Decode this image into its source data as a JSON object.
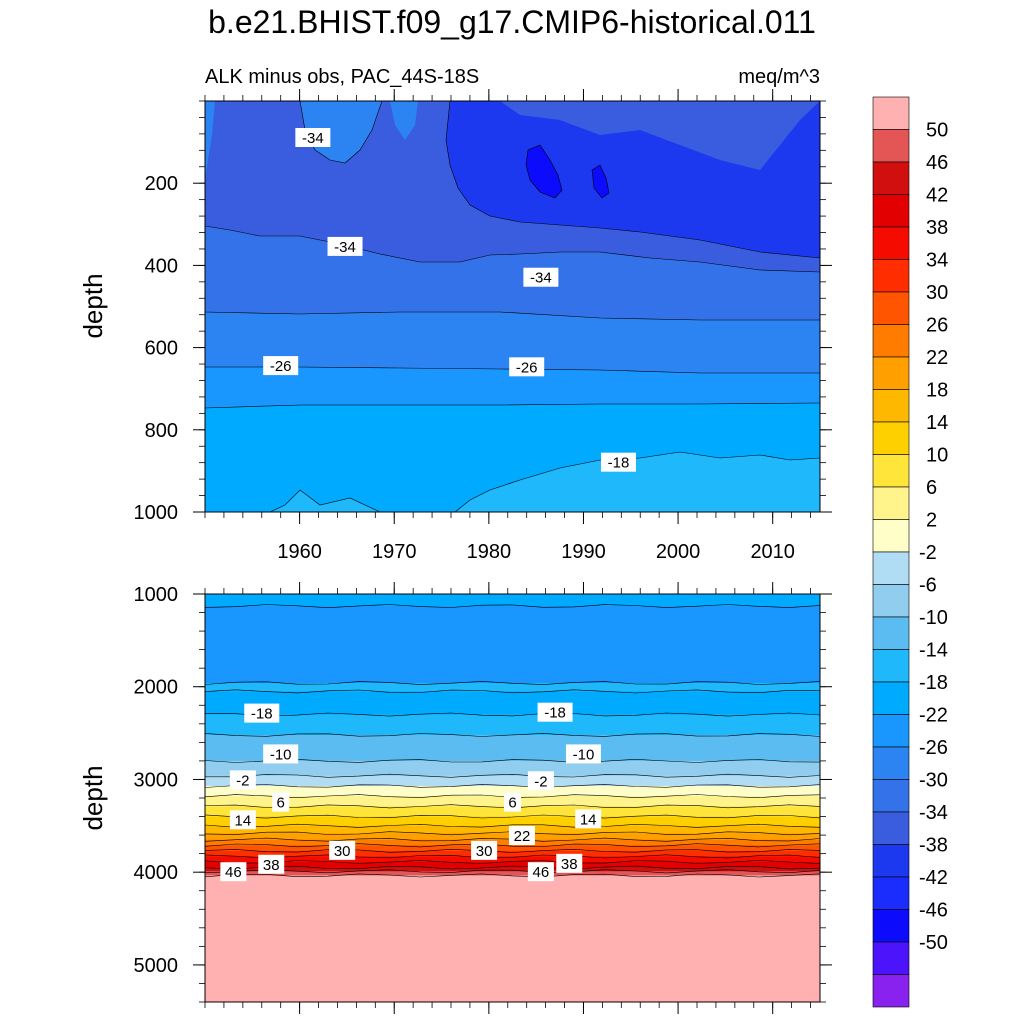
{
  "title": "b.e21.BHIST.f09_g17.CMIP6-historical.011",
  "left_subtitle": "ALK minus obs, PAC_44S-18S",
  "right_subtitle": "meq/m^3",
  "colorbar": {
    "labels": [
      "50",
      "46",
      "42",
      "38",
      "34",
      "30",
      "26",
      "22",
      "18",
      "14",
      "10",
      "6",
      "2",
      "-2",
      "-6",
      "-10",
      "-14",
      "-18",
      "-22",
      "-26",
      "-30",
      "-34",
      "-38",
      "-42",
      "-46",
      "-50"
    ],
    "colors": [
      "#ffb1b1",
      "#e45656",
      "#d20f0f",
      "#e20000",
      "#f60b00",
      "#ff2d00",
      "#ff5500",
      "#ff7c00",
      "#ff9f00",
      "#ffb800",
      "#ffd000",
      "#ffe43a",
      "#fff38c",
      "#fffec9",
      "#b0dcf4",
      "#90cdee",
      "#5bbcf2",
      "#1fb8fb",
      "#00abff",
      "#1a96ff",
      "#2b84f2",
      "#3372e8",
      "#3a5de0",
      "#1d39f0",
      "#1b2dfc",
      "#0d0bfb",
      "#4c14fa",
      "#8a22ef"
    ]
  },
  "chart_data": [
    {
      "type": "contour",
      "panel": "upper",
      "title": "ALK minus obs, PAC_44S-18S",
      "units": "meq/m^3",
      "xlabel": "",
      "ylabel": "depth",
      "xlim": [
        1950,
        2015
      ],
      "ylim": [
        1000,
        0
      ],
      "xticks": [
        1960,
        1970,
        1980,
        1990,
        2000,
        2010
      ],
      "xtick_labels": [
        "1960",
        "1970",
        "1980",
        "1990",
        "2000",
        "2010"
      ],
      "yticks": [
        200,
        400,
        600,
        800,
        1000
      ],
      "ytick_labels": [
        "200",
        "400",
        "600",
        "800",
        "1000"
      ],
      "levels": [
        -50,
        -46,
        -42,
        -38,
        -34,
        -30,
        -26,
        -22,
        -18,
        -14,
        -10,
        -6,
        -2,
        2,
        6,
        10,
        14,
        18,
        22,
        26,
        30,
        34,
        38,
        42,
        46,
        50
      ],
      "contour_labels": [
        {
          "text": "-34",
          "x": 1961.4,
          "depth": 90
        },
        {
          "text": "-34",
          "x": 1964.8,
          "depth": 355
        },
        {
          "text": "-34",
          "x": 1985.5,
          "depth": 430
        },
        {
          "text": "-26",
          "x": 1958.0,
          "depth": 645
        },
        {
          "text": "-26",
          "x": 1984.0,
          "depth": 648
        },
        {
          "text": "-18",
          "x": 1993.7,
          "depth": 880
        }
      ]
    },
    {
      "type": "contour",
      "panel": "lower",
      "xlabel": "",
      "ylabel": "depth",
      "xlim": [
        1950,
        2015
      ],
      "ylim": [
        5400,
        1000
      ],
      "yticks": [
        1000,
        2000,
        3000,
        4000,
        5000
      ],
      "ytick_labels": [
        "1000",
        "2000",
        "3000",
        "4000",
        "5000"
      ],
      "levels": [
        -50,
        -46,
        -42,
        -38,
        -34,
        -30,
        -26,
        -22,
        -18,
        -14,
        -10,
        -6,
        -2,
        2,
        6,
        10,
        14,
        18,
        22,
        26,
        30,
        34,
        38,
        42,
        46,
        50
      ],
      "contour_labels": [
        {
          "text": "-18",
          "x": 1956.0,
          "depth": 2290
        },
        {
          "text": "-18",
          "x": 1987.0,
          "depth": 2280
        },
        {
          "text": "-10",
          "x": 1958.0,
          "depth": 2730
        },
        {
          "text": "-10",
          "x": 1990.0,
          "depth": 2730
        },
        {
          "text": "-2",
          "x": 1954.0,
          "depth": 3010
        },
        {
          "text": "-2",
          "x": 1985.5,
          "depth": 3020
        },
        {
          "text": "6",
          "x": 1958.0,
          "depth": 3250
        },
        {
          "text": "6",
          "x": 1982.5,
          "depth": 3250
        },
        {
          "text": "14",
          "x": 1954.0,
          "depth": 3440
        },
        {
          "text": "14",
          "x": 1990.5,
          "depth": 3430
        },
        {
          "text": "22",
          "x": 1983.5,
          "depth": 3610
        },
        {
          "text": "30",
          "x": 1964.5,
          "depth": 3770
        },
        {
          "text": "30",
          "x": 1979.5,
          "depth": 3770
        },
        {
          "text": "38",
          "x": 1957.0,
          "depth": 3920
        },
        {
          "text": "38",
          "x": 1988.5,
          "depth": 3910
        },
        {
          "text": "46",
          "x": 1953.0,
          "depth": 4000
        },
        {
          "text": "46",
          "x": 1985.5,
          "depth": 4000
        }
      ]
    }
  ]
}
